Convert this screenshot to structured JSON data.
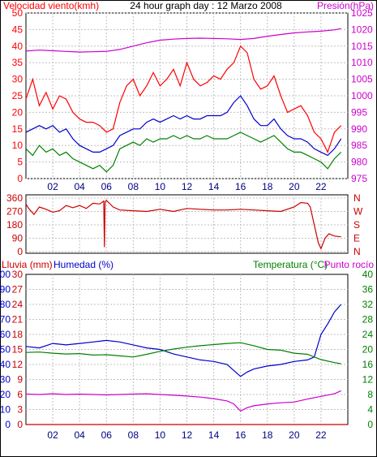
{
  "header": {
    "left_label": "Velocidad viento(kmh)",
    "title": "24 hour graph day : 12 Marzo 2008",
    "right_label": "Presión(hPa)"
  },
  "x_ticks": [
    "02",
    "04",
    "06",
    "08",
    "10",
    "12",
    "14",
    "16",
    "18",
    "20",
    "22"
  ],
  "bottom_headers": {
    "rain": "Lluvia (mm)",
    "humidity": "Humedad (%)",
    "temp": "Temperatura (°C)",
    "dew": "Punto rocío"
  },
  "colors": {
    "wind_gust": "#ff0000",
    "wind_avg": "#008000",
    "pressure": "#cc00cc",
    "wind_dir": "#cc0000",
    "humidity": "#0000cc",
    "temperature": "#008000",
    "dew_point": "#cc00cc",
    "rain": "#cc0000",
    "grid": "#c0c0c0"
  },
  "chart_data": [
    {
      "type": "line",
      "title": "24 hour graph day : 12 Marzo 2008",
      "x_unit": "hour",
      "xlim": [
        0,
        24
      ],
      "x_ticks": [
        "02",
        "04",
        "06",
        "08",
        "10",
        "12",
        "14",
        "16",
        "18",
        "20",
        "22"
      ],
      "y_left": {
        "label": "Velocidad viento(kmh)",
        "ticks": [
          0,
          5,
          10,
          15,
          20,
          25,
          30,
          35,
          40,
          45,
          50
        ],
        "ylim": [
          0,
          50
        ]
      },
      "y_right": {
        "label": "Presión(hPa)",
        "ticks": [
          975,
          980,
          985,
          990,
          995,
          1000,
          1005,
          1010,
          1015,
          1020,
          1025
        ],
        "ylim": [
          975,
          1025
        ]
      },
      "grid": true,
      "series": [
        {
          "axis": "left",
          "color": "#ff0000",
          "x": [
            0,
            0.5,
            1,
            1.5,
            2,
            2.5,
            3,
            3.5,
            4,
            4.5,
            5,
            5.5,
            6,
            6.5,
            7,
            7.5,
            8,
            8.5,
            9,
            9.5,
            10,
            10.5,
            11,
            11.5,
            12,
            12.5,
            13,
            13.5,
            14,
            14.5,
            15,
            15.5,
            16,
            16.5,
            17,
            17.5,
            18,
            18.5,
            19,
            19.5,
            20,
            20.5,
            21,
            21.5,
            22,
            22.5,
            23,
            23.5
          ],
          "values": [
            24,
            30,
            22,
            26,
            21,
            25,
            24,
            20,
            18,
            17,
            17,
            16,
            14,
            15,
            23,
            28,
            30,
            25,
            28,
            32,
            28,
            30,
            33,
            28,
            35,
            30,
            28,
            29,
            31,
            30,
            33,
            35,
            40,
            38,
            30,
            27,
            28,
            31,
            25,
            20,
            21,
            22,
            19,
            14,
            12,
            8,
            14,
            16
          ]
        },
        {
          "axis": "left",
          "color": "#008000",
          "x": [
            0,
            0.5,
            1,
            1.5,
            2,
            2.5,
            3,
            3.5,
            4,
            4.5,
            5,
            5.5,
            6,
            6.5,
            7,
            7.5,
            8,
            8.5,
            9,
            9.5,
            10,
            10.5,
            11,
            11.5,
            12,
            12.5,
            13,
            13.5,
            14,
            14.5,
            15,
            15.5,
            16,
            16.5,
            17,
            17.5,
            18,
            18.5,
            19,
            19.5,
            20,
            20.5,
            21,
            21.5,
            22,
            22.5,
            23,
            23.5
          ],
          "values": [
            9,
            7,
            10,
            8,
            9,
            7,
            8,
            6,
            5,
            4,
            3,
            4,
            2,
            4,
            9,
            10,
            11,
            10,
            12,
            11,
            12,
            12,
            13,
            12,
            13,
            12,
            12,
            13,
            12,
            12,
            12,
            13,
            14,
            13,
            12,
            11,
            12,
            13,
            11,
            9,
            8,
            8,
            7,
            6,
            5,
            3,
            6,
            8
          ]
        },
        {
          "axis": "left",
          "color": "#0000cc",
          "x": [
            0,
            0.5,
            1,
            1.5,
            2,
            2.5,
            3,
            3.5,
            4,
            4.5,
            5,
            5.5,
            6,
            6.5,
            7,
            7.5,
            8,
            8.5,
            9,
            9.5,
            10,
            10.5,
            11,
            11.5,
            12,
            12.5,
            13,
            13.5,
            14,
            14.5,
            15,
            15.5,
            16,
            16.5,
            17,
            17.5,
            18,
            18.5,
            19,
            19.5,
            20,
            20.5,
            21,
            21.5,
            22,
            22.5,
            23,
            23.5
          ],
          "values": [
            14,
            15,
            16,
            15,
            16,
            14,
            15,
            12,
            10,
            9,
            8,
            8,
            9,
            10,
            13,
            14,
            15,
            15,
            17,
            18,
            17,
            18,
            19,
            18,
            19,
            18,
            18,
            19,
            19,
            19,
            20,
            23,
            25,
            22,
            18,
            16,
            16,
            18,
            15,
            13,
            12,
            12,
            11,
            9,
            8,
            7,
            9,
            12
          ]
        },
        {
          "axis": "right",
          "color": "#cc00cc",
          "x": [
            0,
            1,
            2,
            3,
            4,
            5,
            6,
            7,
            8,
            9,
            10,
            11,
            12,
            13,
            14,
            15,
            16,
            17,
            18,
            19,
            20,
            21,
            22,
            23,
            23.5
          ],
          "values": [
            1013.5,
            1013.8,
            1013.6,
            1013.4,
            1013.2,
            1013.3,
            1013.4,
            1014.0,
            1015.0,
            1016.0,
            1016.8,
            1017.1,
            1017.3,
            1017.4,
            1017.3,
            1017.2,
            1017.0,
            1017.3,
            1018.0,
            1018.5,
            1019.0,
            1019.3,
            1019.5,
            1019.9,
            1020.3
          ]
        }
      ]
    },
    {
      "type": "line",
      "x_unit": "hour",
      "xlim": [
        0,
        24
      ],
      "y_left": {
        "ticks": [
          0,
          90,
          180,
          270,
          360
        ]
      },
      "y_right": {
        "ticks": [
          "N",
          "E",
          "S",
          "W",
          "N"
        ]
      },
      "grid": true,
      "series": [
        {
          "axis": "left",
          "color": "#cc0000",
          "x": [
            0,
            0.2,
            0.6,
            1,
            1.5,
            2,
            2.5,
            3,
            3.5,
            4,
            4.5,
            5,
            5.5,
            5.8,
            5.85,
            5.9,
            6,
            6.5,
            7,
            8,
            9,
            10,
            11,
            12,
            13,
            14,
            15,
            16,
            17,
            18,
            19,
            20,
            20.5,
            21,
            21.2,
            21.5,
            21.8,
            22,
            22.3,
            22.6,
            23,
            23.5
          ],
          "values": [
            320,
            290,
            250,
            300,
            285,
            265,
            275,
            310,
            295,
            310,
            290,
            325,
            320,
            340,
            30,
            335,
            345,
            300,
            280,
            275,
            270,
            285,
            270,
            290,
            285,
            280,
            280,
            285,
            280,
            275,
            270,
            300,
            330,
            325,
            300,
            180,
            60,
            20,
            90,
            120,
            105,
            100
          ]
        }
      ]
    },
    {
      "type": "line",
      "x_unit": "hour",
      "xlim": [
        0,
        24
      ],
      "y_axes": [
        {
          "label": "Lluvia (mm)",
          "ticks": [
            0,
            3,
            6,
            9,
            12,
            15,
            18,
            21,
            24,
            27,
            30
          ],
          "ylim": [
            0,
            30
          ]
        },
        {
          "label": "Humedad (%)",
          "ticks": [
            0,
            10,
            20,
            30,
            40,
            50,
            60,
            70,
            80,
            90,
            100
          ],
          "ylim": [
            0,
            100
          ]
        },
        {
          "label": "Temperatura (°C)",
          "ticks": [
            0,
            4,
            8,
            12,
            16,
            20,
            24,
            28,
            32,
            36,
            40
          ],
          "ylim": [
            0,
            40
          ]
        }
      ],
      "grid": true,
      "series": [
        {
          "name": "Humedad (%)",
          "axis": "humidity",
          "color": "#0000cc",
          "x": [
            0,
            1,
            2,
            3,
            4,
            5,
            6,
            7,
            8,
            9,
            10,
            11,
            12,
            13,
            14,
            15,
            15.5,
            16,
            16.5,
            17,
            18,
            19,
            20,
            21,
            21.5,
            22,
            22.5,
            23,
            23.5
          ],
          "values": [
            52,
            51,
            54,
            53,
            54,
            55,
            56,
            55,
            53,
            51,
            50,
            47,
            45,
            43,
            42,
            40,
            36,
            32,
            35,
            37,
            39,
            40,
            42,
            43,
            45,
            60,
            67,
            75,
            80
          ]
        },
        {
          "name": "Temperatura (°C)",
          "axis": "temp",
          "color": "#008000",
          "x": [
            0,
            1,
            2,
            3,
            4,
            5,
            6,
            7,
            8,
            9,
            10,
            11,
            12,
            13,
            14,
            15,
            16,
            17,
            18,
            19,
            20,
            21,
            22,
            23,
            23.5
          ],
          "values": [
            19.2,
            19.3,
            19.0,
            18.8,
            18.9,
            18.5,
            18.6,
            18.3,
            18.0,
            18.7,
            19.5,
            20.1,
            20.6,
            21.0,
            21.3,
            21.6,
            21.8,
            21.0,
            20.0,
            19.8,
            19.0,
            18.7,
            17.3,
            16.5,
            16.2
          ]
        },
        {
          "name": "Punto rocío",
          "axis": "temp",
          "color": "#cc00cc",
          "x": [
            0,
            1,
            2,
            3,
            4,
            5,
            6,
            7,
            8,
            9,
            10,
            11,
            12,
            13,
            14,
            15,
            15.5,
            16,
            16.5,
            17,
            18,
            19,
            20,
            21,
            22,
            23,
            23.5
          ],
          "values": [
            8.1,
            8.0,
            8.2,
            8.0,
            8.1,
            8.0,
            7.9,
            8.0,
            8.1,
            8.2,
            8.0,
            7.8,
            7.6,
            7.3,
            6.9,
            6.3,
            5.5,
            3.6,
            4.5,
            5.0,
            5.5,
            5.8,
            6.0,
            6.8,
            7.5,
            8.2,
            9.0
          ]
        },
        {
          "name": "Lluvia (mm)",
          "axis": "rain",
          "color": "#cc0000",
          "x": [
            0,
            24
          ],
          "values": [
            0,
            0
          ]
        }
      ]
    }
  ]
}
